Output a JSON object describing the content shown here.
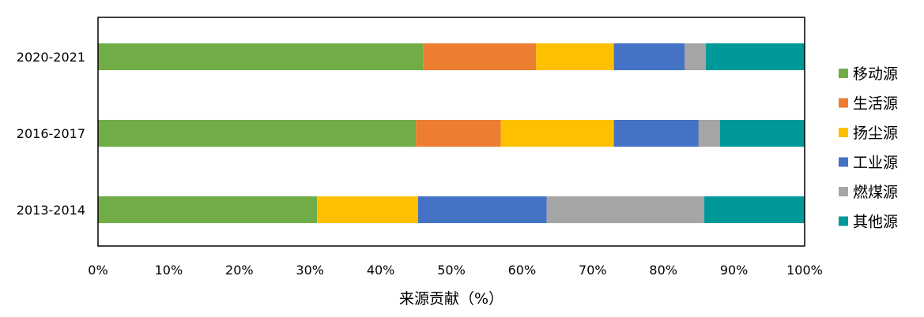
{
  "chart_data": {
    "type": "bar",
    "orientation": "horizontal",
    "stacked": true,
    "categories": [
      "2020-2021",
      "2016-2017",
      "2013-2014"
    ],
    "series": [
      {
        "name": "移动源",
        "color": "#70AD47",
        "values": [
          46,
          45,
          31
        ]
      },
      {
        "name": "生活源",
        "color": "#ED7D31",
        "values": [
          16,
          12,
          0
        ]
      },
      {
        "name": "扬尘源",
        "color": "#FFC000",
        "values": [
          11,
          16,
          14.3
        ]
      },
      {
        "name": "工业源",
        "color": "#4472C4",
        "values": [
          10,
          12,
          18.2
        ]
      },
      {
        "name": "燃煤源",
        "color": "#A5A5A5",
        "values": [
          3,
          3,
          22.3
        ]
      },
      {
        "name": "其他源",
        "color": "#009999",
        "values": [
          14,
          12,
          14.2
        ]
      }
    ],
    "xlabel": "来源贡献（%）",
    "ylabel": "",
    "xlim": [
      0,
      100
    ],
    "xticks": [
      "0%",
      "10%",
      "20%",
      "30%",
      "40%",
      "50%",
      "60%",
      "70%",
      "80%",
      "90%",
      "100%"
    ],
    "grid": false,
    "legend_position": "right"
  }
}
